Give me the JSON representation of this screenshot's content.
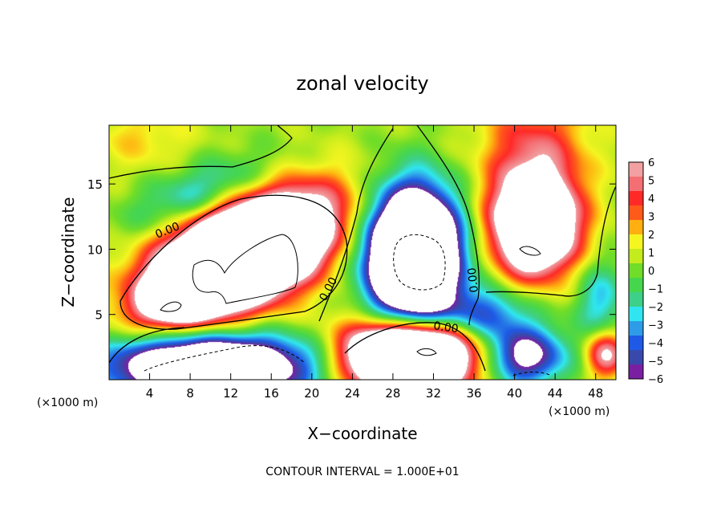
{
  "chart_data": {
    "type": "heatmap",
    "title": "zonal velocity",
    "xlabel": "X−coordinate",
    "ylabel": "Z−coordinate",
    "x_unit": "(×1000 m)",
    "x_unit_right": "(×1000 m)",
    "xlim": [
      0,
      50
    ],
    "ylim": [
      0,
      19.5
    ],
    "x_ticks": [
      "4",
      "8",
      "12",
      "16",
      "20",
      "24",
      "28",
      "32",
      "36",
      "40",
      "44",
      "48"
    ],
    "y_ticks": [
      "5",
      "10",
      "15"
    ],
    "colorbar": {
      "ticks": [
        "6",
        "5",
        "4",
        "3",
        "2",
        "1",
        "0",
        "−1",
        "−2",
        "−3",
        "−4",
        "−5",
        "−6"
      ],
      "range": [
        -6,
        6
      ],
      "colors": [
        "#7b1fa2",
        "#3949ab",
        "#1e5ae6",
        "#2e9be8",
        "#2fe6f0",
        "#3ed088",
        "#46d64e",
        "#70dd28",
        "#c4ec1c",
        "#f5f520",
        "#ffb010",
        "#ff5a1a",
        "#ff2a28",
        "#f36f74",
        "#f2a0a2"
      ],
      "beyond_range_color": "#ffffff"
    },
    "contour_labels": [
      "0.00",
      "0.00",
      "0.00",
      "0.00"
    ],
    "footnote": "CONTOUR INTERVAL = 1.000E+01",
    "features": [
      {
        "kind": "max",
        "cx": 13.0,
        "cz": 9.5,
        "rx": 8.5,
        "rz": 3.5,
        "rot": 18,
        "amp": 22
      },
      {
        "kind": "max",
        "cx": 7.5,
        "cz": 6.4,
        "rx": 3.5,
        "rz": 1.6,
        "rot": 10,
        "amp": 10
      },
      {
        "kind": "max",
        "cx": 29.5,
        "cz": 1.8,
        "rx": 6.0,
        "rz": 2.6,
        "rot": 0,
        "amp": 20
      },
      {
        "kind": "max",
        "cx": 42.0,
        "cz": 11.8,
        "rx": 4.0,
        "rz": 3.6,
        "rot": 0,
        "amp": 14
      },
      {
        "kind": "max",
        "cx": 42.0,
        "cz": 17.5,
        "rx": 5.0,
        "rz": 4.5,
        "rot": 0,
        "amp": 4
      },
      {
        "kind": "max",
        "cx": 49.0,
        "cz": 2.0,
        "rx": 2.0,
        "rz": 1.8,
        "rot": 0,
        "amp": 6
      },
      {
        "kind": "min",
        "cx": 30.0,
        "cz": 9.5,
        "rx": 4.2,
        "rz": 4.8,
        "rot": 0,
        "amp": 22
      },
      {
        "kind": "min",
        "cx": 10.0,
        "cz": 1.0,
        "rx": 10.0,
        "rz": 2.4,
        "rot": 0,
        "amp": 14
      },
      {
        "kind": "min",
        "cx": 41.0,
        "cz": 1.8,
        "rx": 4.0,
        "rz": 2.2,
        "rot": 0,
        "amp": 8
      },
      {
        "kind": "min",
        "cx": 9.0,
        "cz": 14.3,
        "rx": 7.0,
        "rz": 2.2,
        "rot": 15,
        "amp": 3.5
      },
      {
        "kind": "min",
        "cx": 37.0,
        "cz": 5.0,
        "rx": 4.5,
        "rz": 2.0,
        "rot": 0,
        "amp": 5
      },
      {
        "kind": "min",
        "cx": 48.5,
        "cz": 6.0,
        "rx": 2.5,
        "rz": 3.0,
        "rot": 0,
        "amp": 3.5
      },
      {
        "kind": "max",
        "cx": 3.0,
        "cz": 18.5,
        "rx": 5.0,
        "rz": 2.5,
        "rot": 0,
        "amp": 1.5
      }
    ]
  }
}
